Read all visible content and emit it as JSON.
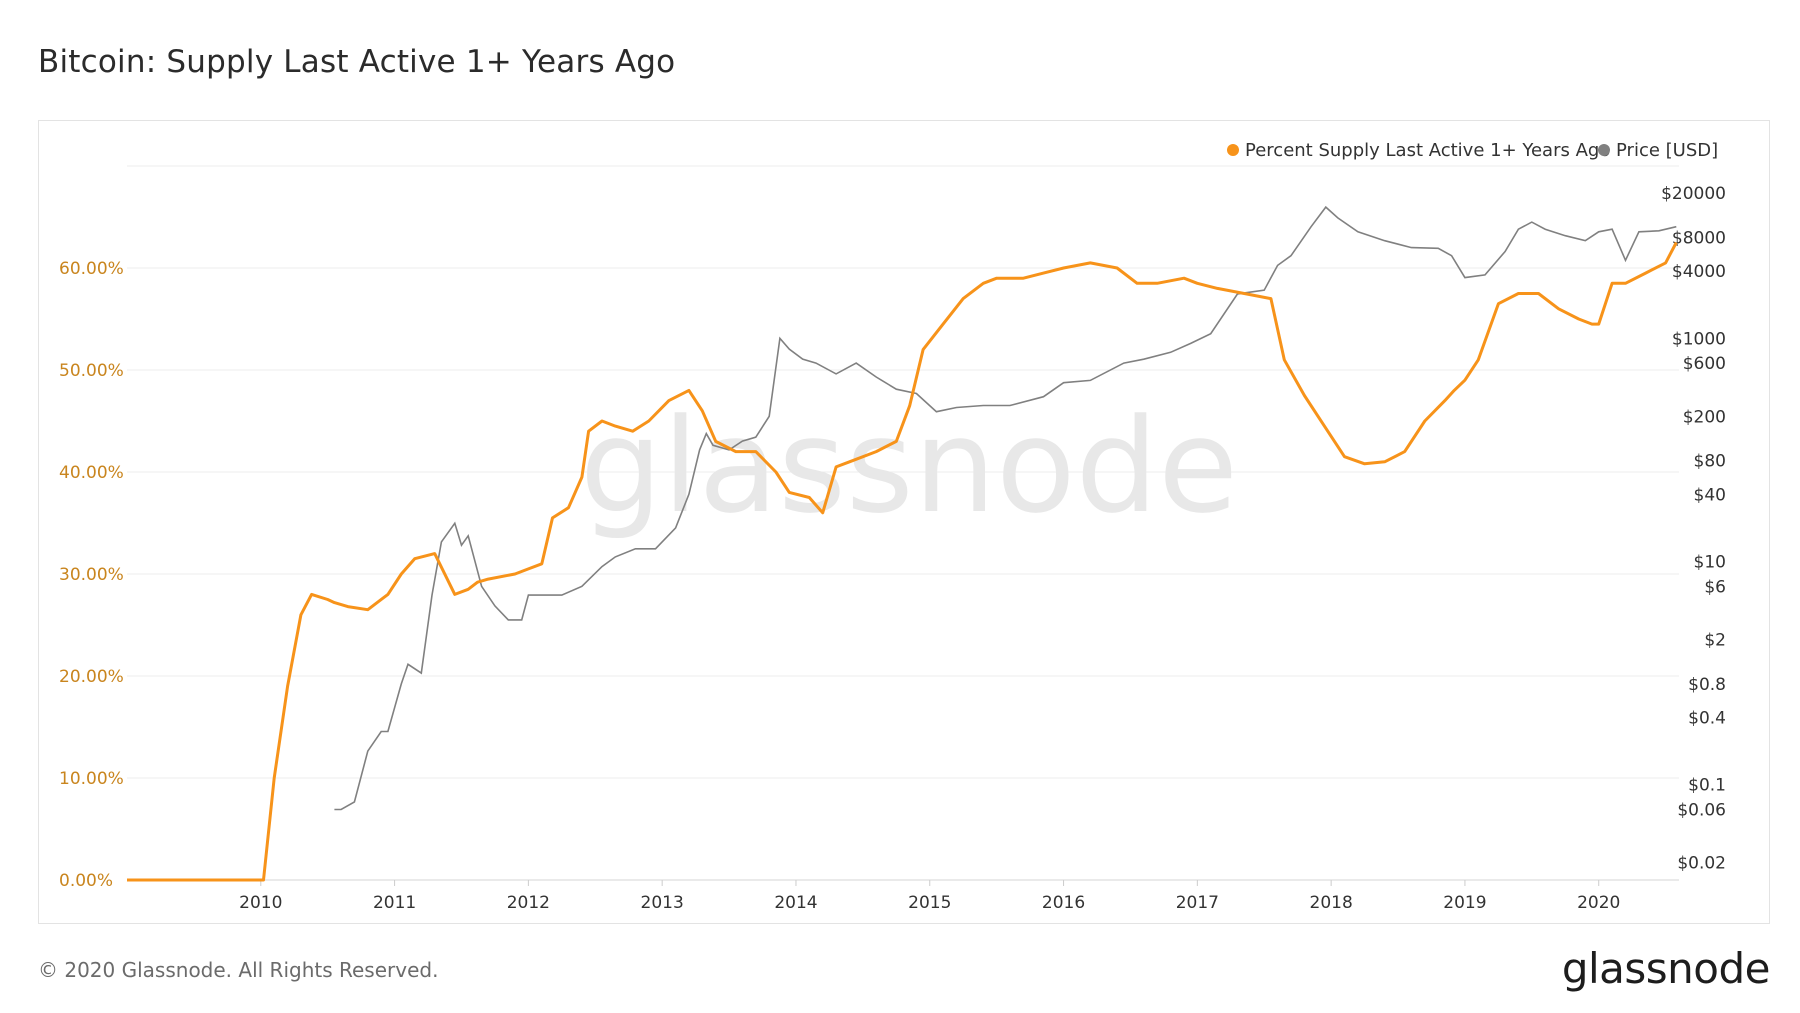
{
  "header": {
    "title": "Bitcoin: Supply Last Active 1+ Years Ago"
  },
  "footer": {
    "copyright": "© 2020 Glassnode. All Rights Reserved.",
    "brand": "glassnode"
  },
  "watermark": "glassnode",
  "colors": {
    "supply": "#f7931a",
    "price": "#808080",
    "left_axis_text": "#c9851e",
    "grid": "#eeeeee"
  },
  "chart_data": {
    "type": "line",
    "title": "Bitcoin: Supply Last Active 1+ Years Ago",
    "legend_position": "top-right",
    "grid": true,
    "x_range": [
      2009.0,
      2020.6
    ],
    "x_ticks": [
      "2010",
      "2011",
      "2012",
      "2013",
      "2014",
      "2015",
      "2016",
      "2017",
      "2018",
      "2019",
      "2020"
    ],
    "y_left": {
      "range": [
        0,
        0.7
      ],
      "scale": "linear",
      "tick_values": [
        0,
        0.1,
        0.2,
        0.3,
        0.4,
        0.5,
        0.6
      ],
      "tick_labels": [
        "0.00%",
        "10.00%",
        "20.00%",
        "30.00%",
        "40.00%",
        "50.00%",
        "60.00%"
      ]
    },
    "y_right": {
      "range": [
        0.014,
        35000
      ],
      "scale": "log",
      "tick_values": [
        20000,
        8000,
        4000,
        1000,
        600,
        200,
        80,
        40,
        10,
        6,
        2,
        0.8,
        0.4,
        0.1,
        0.06,
        0.02
      ],
      "tick_labels": [
        "$20000",
        "$8000",
        "$4000",
        "$1000",
        "$600",
        "$200",
        "$80",
        "$40",
        "$10",
        "$6",
        "$2",
        "$0.8",
        "$0.4",
        "$0.1",
        "$0.06",
        "$0.02"
      ]
    },
    "series": [
      {
        "name": "Percent Supply Last Active 1+ Years Ago",
        "axis": "left",
        "x": [
          2009.0,
          2009.5,
          2010.02,
          2010.1,
          2010.2,
          2010.3,
          2010.38,
          2010.5,
          2010.55,
          2010.65,
          2010.8,
          2010.95,
          2011.05,
          2011.15,
          2011.3,
          2011.45,
          2011.55,
          2011.62,
          2011.7,
          2011.9,
          2012.0,
          2012.1,
          2012.18,
          2012.3,
          2012.4,
          2012.45,
          2012.55,
          2012.65,
          2012.78,
          2012.9,
          2013.05,
          2013.2,
          2013.3,
          2013.4,
          2013.55,
          2013.7,
          2013.85,
          2013.95,
          2014.1,
          2014.2,
          2014.3,
          2014.4,
          2014.6,
          2014.75,
          2014.85,
          2014.95,
          2015.1,
          2015.25,
          2015.4,
          2015.5,
          2015.7,
          2015.85,
          2016.0,
          2016.2,
          2016.4,
          2016.55,
          2016.7,
          2016.9,
          2017.0,
          2017.15,
          2017.35,
          2017.55,
          2017.65,
          2017.8,
          2017.95,
          2018.1,
          2018.25,
          2018.4,
          2018.55,
          2018.7,
          2018.85,
          2018.92,
          2019.0,
          2019.1,
          2019.25,
          2019.4,
          2019.55,
          2019.7,
          2019.85,
          2019.95,
          2020.0,
          2020.1,
          2020.2,
          2020.35,
          2020.5,
          2020.58
        ],
        "values": [
          0,
          0,
          0,
          0.1,
          0.19,
          0.26,
          0.28,
          0.275,
          0.272,
          0.268,
          0.265,
          0.28,
          0.3,
          0.315,
          0.32,
          0.28,
          0.285,
          0.292,
          0.295,
          0.3,
          0.305,
          0.31,
          0.355,
          0.365,
          0.395,
          0.44,
          0.45,
          0.445,
          0.44,
          0.45,
          0.47,
          0.48,
          0.46,
          0.43,
          0.42,
          0.42,
          0.4,
          0.38,
          0.375,
          0.36,
          0.405,
          0.41,
          0.42,
          0.43,
          0.465,
          0.52,
          0.545,
          0.57,
          0.585,
          0.59,
          0.59,
          0.595,
          0.6,
          0.605,
          0.6,
          0.585,
          0.585,
          0.59,
          0.585,
          0.58,
          0.575,
          0.57,
          0.51,
          0.475,
          0.445,
          0.415,
          0.408,
          0.41,
          0.42,
          0.45,
          0.47,
          0.48,
          0.49,
          0.51,
          0.565,
          0.575,
          0.575,
          0.56,
          0.55,
          0.545,
          0.545,
          0.585,
          0.585,
          0.595,
          0.605,
          0.625
        ]
      },
      {
        "name": "Price [USD]",
        "axis": "right",
        "x": [
          2010.55,
          2010.6,
          2010.7,
          2010.8,
          2010.9,
          2010.95,
          2011.05,
          2011.1,
          2011.2,
          2011.28,
          2011.35,
          2011.45,
          2011.5,
          2011.55,
          2011.65,
          2011.75,
          2011.85,
          2011.95,
          2012.0,
          2012.1,
          2012.25,
          2012.4,
          2012.55,
          2012.65,
          2012.8,
          2012.95,
          2013.1,
          2013.2,
          2013.28,
          2013.33,
          2013.38,
          2013.5,
          2013.6,
          2013.7,
          2013.8,
          2013.88,
          2013.95,
          2014.05,
          2014.15,
          2014.3,
          2014.45,
          2014.6,
          2014.75,
          2014.9,
          2015.05,
          2015.2,
          2015.4,
          2015.6,
          2015.85,
          2016.0,
          2016.2,
          2016.45,
          2016.6,
          2016.8,
          2016.95,
          2017.1,
          2017.3,
          2017.5,
          2017.6,
          2017.7,
          2017.85,
          2017.96,
          2018.05,
          2018.2,
          2018.4,
          2018.6,
          2018.8,
          2018.9,
          2019.0,
          2019.15,
          2019.3,
          2019.4,
          2019.5,
          2019.6,
          2019.75,
          2019.9,
          2020.0,
          2020.1,
          2020.2,
          2020.3,
          2020.45,
          2020.58
        ],
        "values": [
          0.06,
          0.06,
          0.07,
          0.2,
          0.3,
          0.3,
          0.8,
          1.2,
          1.0,
          5,
          15,
          22,
          14,
          17,
          6,
          4,
          3,
          3,
          5,
          5,
          5,
          6,
          9,
          11,
          13,
          13,
          20,
          40,
          100,
          140,
          110,
          100,
          120,
          130,
          200,
          1000,
          800,
          650,
          600,
          480,
          600,
          450,
          350,
          320,
          220,
          240,
          250,
          250,
          300,
          400,
          420,
          600,
          650,
          750,
          900,
          1100,
          2500,
          2700,
          4500,
          5500,
          10000,
          15000,
          12000,
          9000,
          7500,
          6500,
          6400,
          5500,
          3500,
          3700,
          6000,
          9500,
          11000,
          9500,
          8300,
          7500,
          9000,
          9500,
          5000,
          9000,
          9200,
          10000
        ]
      }
    ]
  }
}
